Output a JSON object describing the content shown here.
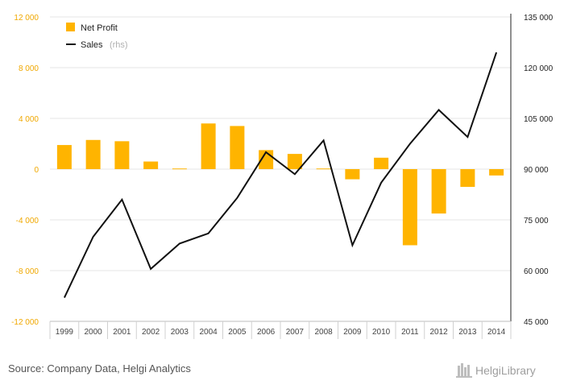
{
  "chart_data": {
    "type": "bar",
    "categories": [
      "1999",
      "2000",
      "2001",
      "2002",
      "2003",
      "2004",
      "2005",
      "2006",
      "2007",
      "2008",
      "2009",
      "2010",
      "2011",
      "2012",
      "2013",
      "2014"
    ],
    "series": [
      {
        "name": "Net Profit",
        "type": "bar",
        "axis": "left",
        "color": "#ffb400",
        "values": [
          1900,
          2300,
          2200,
          600,
          50,
          3600,
          3400,
          1500,
          1200,
          50,
          -800,
          900,
          -6000,
          -3500,
          -1400,
          -500
        ]
      },
      {
        "name": "Sales",
        "name_suffix": "(rhs)",
        "type": "line",
        "axis": "right",
        "color": "#111111",
        "values": [
          52000,
          70000,
          81000,
          60500,
          68000,
          71000,
          81500,
          95000,
          88500,
          98500,
          67500,
          86000,
          97500,
          107500,
          99500,
          124500
        ]
      }
    ],
    "left_axis": {
      "ylim": [
        -12000,
        12000
      ],
      "ticks": [
        -12000,
        -8000,
        -4000,
        0,
        4000,
        8000,
        12000
      ],
      "tick_labels": [
        "-12 000",
        "-8 000",
        "-4 000",
        "0",
        "4 000",
        "8 000",
        "12 000"
      ],
      "color": "#f0a800"
    },
    "right_axis": {
      "ylim": [
        45000,
        135000
      ],
      "ticks": [
        45000,
        60000,
        75000,
        90000,
        105000,
        120000,
        135000
      ],
      "tick_labels": [
        "45 000",
        "60 000",
        "75 000",
        "90 000",
        "105 000",
        "120 000",
        "135 000"
      ]
    },
    "grid": true,
    "legend": "top-left"
  },
  "footer": {
    "source": "Source: Company Data, Helgi Analytics",
    "brand": "HelgiLibrary"
  }
}
